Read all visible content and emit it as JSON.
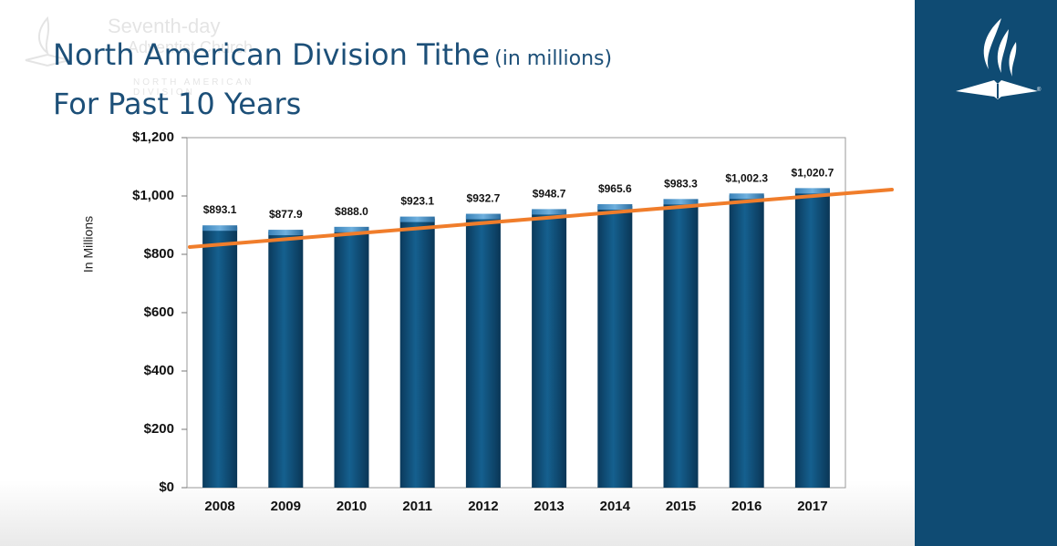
{
  "watermark": {
    "line1": "Seventh-day",
    "line2": "Adventist Church",
    "line3": "NORTH AMERICAN DIVISION"
  },
  "title": {
    "main": "North American Division Tithe",
    "suffix": "(in millions)",
    "line2": "For Past 10 Years"
  },
  "colors": {
    "bar": "#0f4a72",
    "trend": "#f07d2b",
    "panel": "#0f4b73",
    "title": "#1c4f78"
  },
  "icons": {
    "logo": "adventist-flame-bible-icon"
  },
  "chart_data": {
    "type": "bar",
    "categories": [
      "2008",
      "2009",
      "2010",
      "2011",
      "2012",
      "2013",
      "2014",
      "2015",
      "2016",
      "2017"
    ],
    "values": [
      893.1,
      877.9,
      888.0,
      923.1,
      932.7,
      948.7,
      965.6,
      983.3,
      1002.3,
      1020.7
    ],
    "data_labels": [
      "$893.1",
      "$877.9",
      "$888.0",
      "$923.1",
      "$932.7",
      "$948.7",
      "$965.6",
      "$983.3",
      "$1,002.3",
      "$1,020.7"
    ],
    "ylabel": "In Millions",
    "ylim": [
      0,
      1200
    ],
    "yticks": [
      0,
      200,
      400,
      600,
      800,
      1000,
      1200
    ],
    "ytick_labels": [
      "$0",
      "$200",
      "$400",
      "$600",
      "$800",
      "$1,000",
      "$1,200"
    ],
    "trendline": {
      "start_value": 825,
      "end_value": 1022
    },
    "grid": false,
    "legend": "none"
  }
}
